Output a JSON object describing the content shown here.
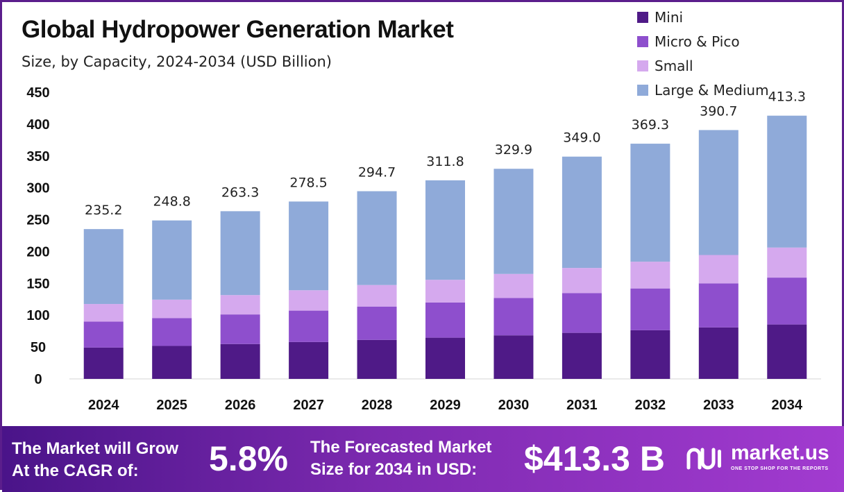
{
  "title": "Global Hydropower Generation Market",
  "subtitle": "Size, by Capacity, 2024-2034 (USD Billion)",
  "colors": {
    "mini": "#4f1a87",
    "micro_pico": "#8e4fcd",
    "small": "#d5a9ee",
    "large_medium": "#8faad9",
    "banner_start": "#4a1489",
    "banner_end": "#a23bd0"
  },
  "legend": [
    {
      "label": "Mini",
      "color": "#4f1a87"
    },
    {
      "label": "Micro & Pico",
      "color": "#8e4fcd"
    },
    {
      "label": "Small",
      "color": "#d5a9ee"
    },
    {
      "label": "Large & Medium",
      "color": "#8faad9"
    }
  ],
  "chart_data": {
    "type": "bar",
    "stacked": true,
    "title": "Global Hydropower Generation Market",
    "subtitle": "Size, by Capacity, 2024-2034 (USD Billion)",
    "xlabel": "",
    "ylabel": "",
    "ylim": [
      0,
      450
    ],
    "yticks": [
      0,
      50,
      100,
      150,
      200,
      250,
      300,
      350,
      400,
      450
    ],
    "grid": false,
    "legend_position": "top-right",
    "categories": [
      "2024",
      "2025",
      "2026",
      "2027",
      "2028",
      "2029",
      "2030",
      "2031",
      "2032",
      "2033",
      "2034"
    ],
    "series": [
      {
        "name": "Mini",
        "color": "#4f1a87",
        "values": [
          49.2,
          51.8,
          54.7,
          57.9,
          61.2,
          64.7,
          68.4,
          72.3,
          76.4,
          80.8,
          85.4
        ]
      },
      {
        "name": "Micro & Pico",
        "color": "#8e4fcd",
        "values": [
          40.8,
          43.7,
          46.5,
          49.3,
          52.4,
          55.3,
          58.6,
          62.3,
          65.6,
          69.2,
          73.6
        ]
      },
      {
        "name": "Small",
        "color": "#d5a9ee",
        "values": [
          27.6,
          28.9,
          30.4,
          32.0,
          33.8,
          35.6,
          37.8,
          39.6,
          42.0,
          44.5,
          47.2
        ]
      },
      {
        "name": "Large & Medium",
        "color": "#8faad9",
        "values": [
          117.6,
          124.4,
          131.7,
          139.3,
          147.3,
          156.2,
          165.1,
          174.8,
          185.3,
          196.2,
          207.1
        ]
      }
    ],
    "totals": [
      "235.2",
      "248.8",
      "263.3",
      "278.5",
      "294.7",
      "311.8",
      "329.9",
      "349.0",
      "369.3",
      "390.7",
      "413.3"
    ]
  },
  "banner": {
    "cagr_text_line1": "The Market will Grow",
    "cagr_text_line2": "At the CAGR of:",
    "cagr_value": "5.8%",
    "forecast_text_line1": "The Forecasted Market",
    "forecast_text_line2": "Size for 2034 in USD:",
    "forecast_value": "$413.3 B",
    "logo_name": "market.us",
    "logo_tagline": "ONE STOP SHOP FOR THE REPORTS"
  }
}
